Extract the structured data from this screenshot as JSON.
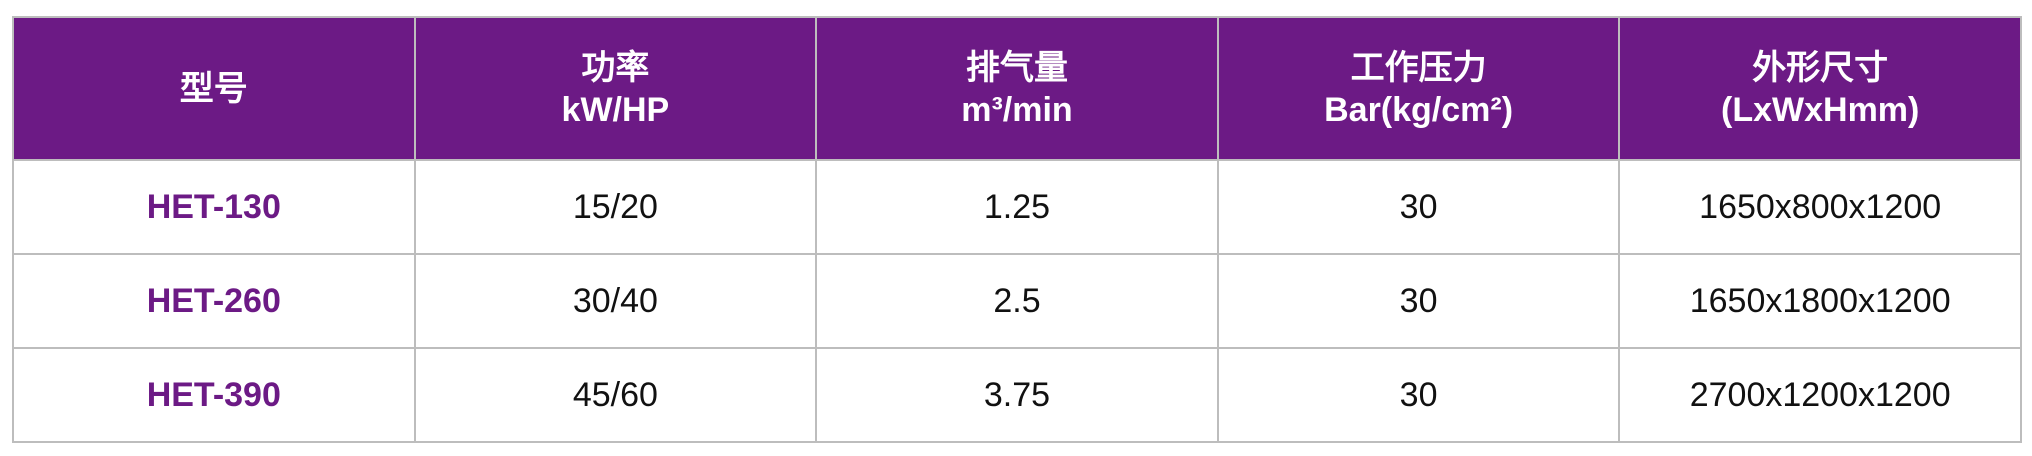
{
  "accent_color": "#6c1a85",
  "headers": [
    {
      "line1": "型号",
      "line2": ""
    },
    {
      "line1": "功率",
      "line2": "kW/HP"
    },
    {
      "line1": "排气量",
      "line2": "m³/min"
    },
    {
      "line1": "工作压力",
      "line2": "Bar(kg/cm²)"
    },
    {
      "line1": "外形尺寸",
      "line2": "(LxWxHmm)"
    }
  ],
  "rows": [
    [
      "HET-130",
      "15/20",
      "1.25",
      "30",
      "1650x800x1200"
    ],
    [
      "HET-260",
      "30/40",
      "2.5",
      "30",
      "1650x1800x1200"
    ],
    [
      "HET-390",
      "45/60",
      "3.75",
      "30",
      "2700x1200x1200"
    ]
  ]
}
